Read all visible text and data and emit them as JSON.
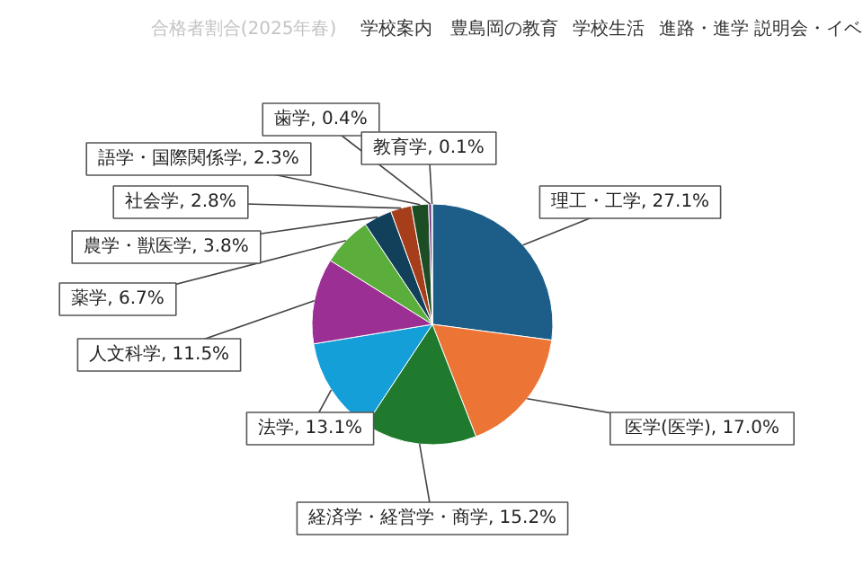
{
  "chart_data": {
    "type": "pie",
    "title": "合格者割合(2025年春)",
    "annotations": [
      "学校案内",
      "豊島岡の教育",
      "学校生活",
      "進路・進学",
      "説明会・イベ"
    ],
    "categories": [
      "理工・工学",
      "医学(医学)",
      "経済学・経営学・商学",
      "法学",
      "人文科学",
      "薬学",
      "農学・獣医学",
      "社会学",
      "語学・国際関係学",
      "歯学",
      "教育学"
    ],
    "values": [
      27.1,
      17.0,
      15.2,
      13.1,
      11.5,
      6.7,
      3.8,
      2.8,
      2.3,
      0.4,
      0.1
    ],
    "value_labels": [
      "27.1%",
      "17.0%",
      "15.2%",
      "13.1%",
      "11.5%",
      "6.7%",
      "3.8%",
      "2.8%",
      "2.3%",
      "0.4%",
      "0.1%"
    ],
    "colors": [
      "#1c5e88",
      "#ec7535",
      "#1f7a2e",
      "#159fd8",
      "#9b2f93",
      "#5cae3c",
      "#123f5a",
      "#a63e1c",
      "#1d4d24",
      "#6a2a78",
      "#1e8fc8"
    ]
  }
}
